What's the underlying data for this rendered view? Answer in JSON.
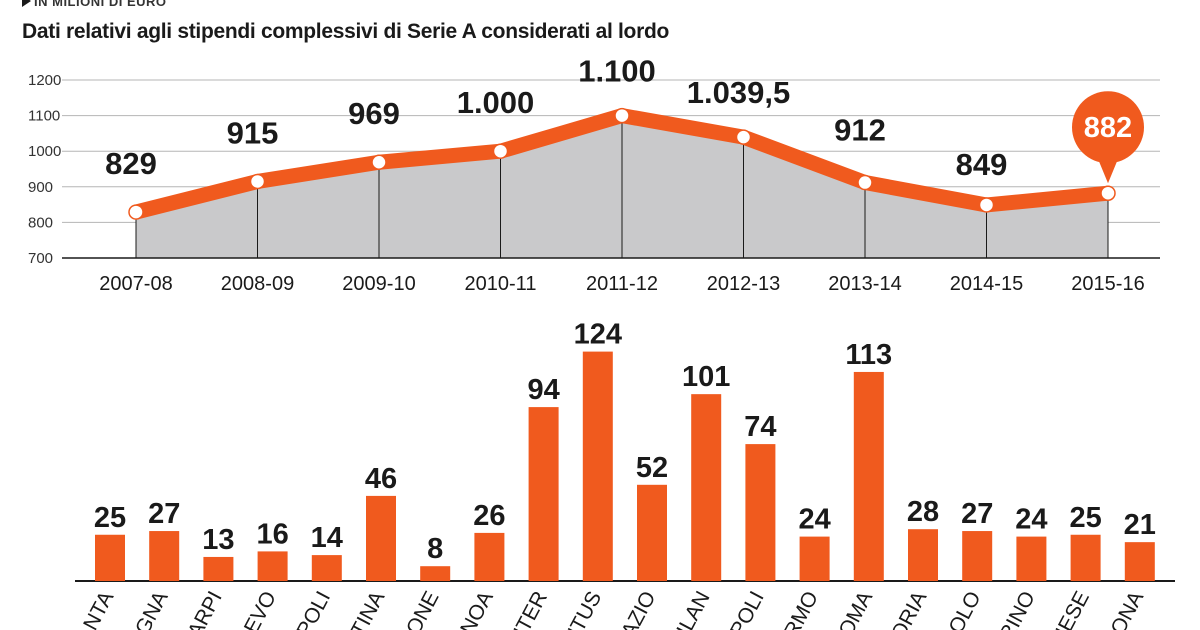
{
  "header": {
    "kicker": "IN MILIONI DI EURO",
    "subtitle": "Dati relativi agli stipendi complessivi di Serie A considerati al lordo"
  },
  "colors": {
    "accent": "#f05a1e",
    "area": "#c9c9cb",
    "text": "#1a1a1a"
  },
  "chart_data": [
    {
      "type": "area",
      "categories": [
        "2007-08",
        "2008-09",
        "2009-10",
        "2010-11",
        "2011-12",
        "2012-13",
        "2013-14",
        "2014-15",
        "2015-16"
      ],
      "values": [
        829,
        915,
        969,
        1000,
        1100,
        1039.5,
        912,
        849,
        882
      ],
      "value_labels": [
        "829",
        "915",
        "969",
        "1.000",
        "1.100",
        "1.039,5",
        "912",
        "849",
        "882"
      ],
      "yticks": [
        "700",
        "800",
        "900",
        "1000",
        "1100",
        "1200"
      ],
      "ylim": [
        700,
        1200
      ],
      "highlight": "882"
    },
    {
      "type": "bar",
      "categories": [
        "ANTA",
        "OGNA",
        "ARPI",
        "IEVO",
        "POLI",
        "TINA",
        "IONE",
        "NOA",
        "NTER",
        "NTUS",
        "AZIO",
        "ILAN",
        "POLI",
        "RMO",
        "OMA",
        "ORIA",
        "OLO",
        "RINO",
        "NESE",
        "RONA"
      ],
      "values": [
        25,
        27,
        13,
        16,
        14,
        46,
        8,
        26,
        94,
        124,
        52,
        101,
        74,
        24,
        113,
        28,
        27,
        24,
        25,
        21
      ],
      "value_labels": [
        "25",
        "27",
        "13",
        "16",
        "14",
        "46",
        "8",
        "26",
        "94",
        "124",
        "52",
        "101",
        "74",
        "24",
        "113",
        "28",
        "27",
        "24",
        "25",
        "21"
      ]
    }
  ]
}
